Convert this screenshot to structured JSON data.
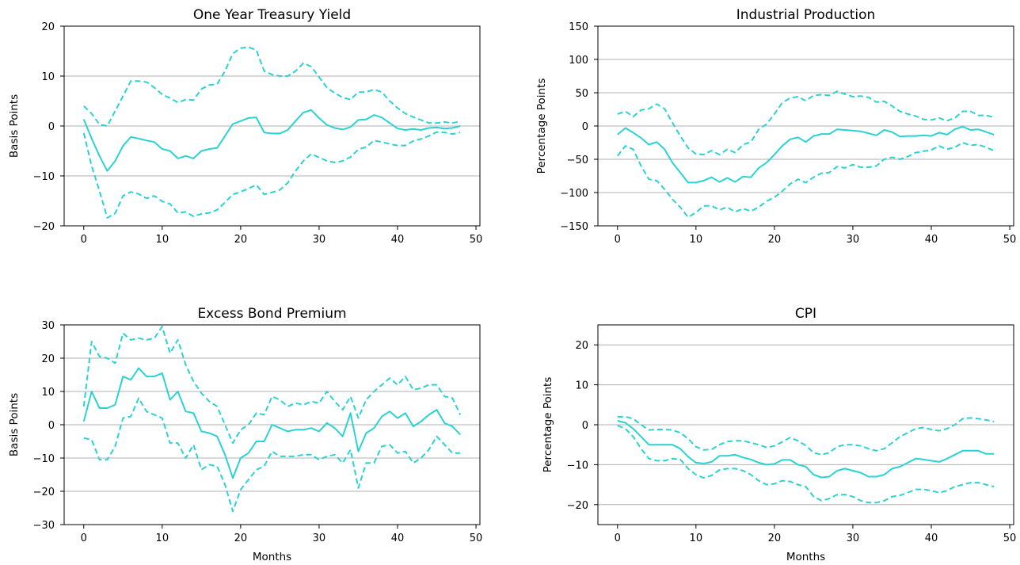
{
  "colors": {
    "line": "#2ad3d3",
    "grid": "#b0b0b0",
    "axis": "#000000"
  },
  "chart_data": [
    {
      "type": "line",
      "title": "One Year Treasury Yield",
      "xlabel": "",
      "ylabel": "Basis Points",
      "xlim": [
        -2.5,
        50.5
      ],
      "ylim": [
        -20,
        20
      ],
      "xticks": [
        0,
        10,
        20,
        30,
        40,
        50
      ],
      "yticks": [
        -20,
        -10,
        0,
        10,
        20
      ],
      "ytick_labels": [
        "−20",
        "−10",
        "0",
        "10",
        "20"
      ],
      "grid": "y",
      "x": [
        0,
        1,
        2,
        3,
        4,
        5,
        6,
        7,
        8,
        9,
        10,
        11,
        12,
        13,
        14,
        15,
        16,
        17,
        18,
        19,
        20,
        21,
        22,
        23,
        24,
        25,
        26,
        27,
        28,
        29,
        30,
        31,
        32,
        33,
        34,
        35,
        36,
        37,
        38,
        39,
        40,
        41,
        42,
        43,
        44,
        45,
        46,
        47,
        48
      ],
      "series": [
        {
          "style": "solid",
          "values": [
            1.3,
            -2.5,
            -6,
            -9,
            -7,
            -4,
            -2.2,
            -2.5,
            -2.9,
            -3.2,
            -4.6,
            -5,
            -6.5,
            -6,
            -6.5,
            -5,
            -4.6,
            -4.4,
            -2,
            0.4,
            1,
            1.6,
            1.7,
            -1.3,
            -1.5,
            -1.5,
            -0.8,
            1,
            2.7,
            3.2,
            1.6,
            0.2,
            -0.4,
            -0.7,
            -0.2,
            1.2,
            1.3,
            2.2,
            1.7,
            0.6,
            -0.5,
            -0.8,
            -0.6,
            -0.8,
            -0.4,
            -0.3,
            -0.5,
            -0.4,
            0
          ]
        },
        {
          "style": "dashed",
          "values": [
            4,
            2.5,
            0.3,
            0,
            3,
            6,
            9,
            9,
            8.8,
            7.7,
            6.3,
            5.6,
            4.7,
            5.3,
            5.2,
            7.4,
            8.2,
            8.4,
            11,
            14.5,
            15.6,
            15.8,
            15.2,
            11,
            10.3,
            10,
            10,
            11,
            12.6,
            11.9,
            9.8,
            7.7,
            6.6,
            5.7,
            5.3,
            6.8,
            6.8,
            7.3,
            6.8,
            5,
            3.6,
            2.5,
            1.8,
            1.2,
            0.6,
            0.6,
            0.8,
            0.6,
            0.9
          ]
        },
        {
          "style": "dashed",
          "values": [
            -1.4,
            -8,
            -13,
            -18.4,
            -17.5,
            -14,
            -13.2,
            -13.6,
            -14.5,
            -14,
            -15.1,
            -15.6,
            -17.4,
            -17.2,
            -18.1,
            -17.6,
            -17.4,
            -16.8,
            -15.3,
            -13.7,
            -13.2,
            -12.5,
            -11.8,
            -13.7,
            -13.3,
            -12.8,
            -11.4,
            -9,
            -7,
            -5.6,
            -6.3,
            -7,
            -7.3,
            -7,
            -6.2,
            -4.7,
            -4.2,
            -2.9,
            -3.2,
            -3.6,
            -3.9,
            -3.9,
            -3,
            -2.6,
            -2,
            -1.2,
            -1.3,
            -1.6,
            -1.3
          ]
        }
      ]
    },
    {
      "type": "line",
      "title": "Industrial Production",
      "xlabel": "",
      "ylabel": "Percentage Points",
      "xlim": [
        -2.5,
        50.5
      ],
      "ylim": [
        -150,
        150
      ],
      "xticks": [
        0,
        10,
        20,
        30,
        40,
        50
      ],
      "yticks": [
        -150,
        -100,
        -50,
        0,
        50,
        100,
        150
      ],
      "ytick_labels": [
        "−150",
        "−100",
        "−50",
        "0",
        "50",
        "100",
        "150"
      ],
      "grid": "y",
      "x": [
        0,
        1,
        2,
        3,
        4,
        5,
        6,
        7,
        8,
        9,
        10,
        11,
        12,
        13,
        14,
        15,
        16,
        17,
        18,
        19,
        20,
        21,
        22,
        23,
        24,
        25,
        26,
        27,
        28,
        29,
        30,
        31,
        32,
        33,
        34,
        35,
        36,
        37,
        38,
        39,
        40,
        41,
        42,
        43,
        44,
        45,
        46,
        47,
        48
      ],
      "series": [
        {
          "style": "solid",
          "values": [
            -13,
            -3,
            -10,
            -18,
            -28,
            -24,
            -35,
            -55,
            -70,
            -85,
            -85,
            -82,
            -77,
            -84,
            -78,
            -84,
            -76,
            -77,
            -63,
            -55,
            -43,
            -30,
            -20,
            -17,
            -24,
            -15,
            -12,
            -12,
            -5,
            -6,
            -7,
            -8,
            -11,
            -14,
            -6,
            -9,
            -16,
            -15,
            -15,
            -14,
            -15,
            -10,
            -13,
            -5,
            -1,
            -6,
            -5,
            -9,
            -13
          ]
        },
        {
          "style": "dashed",
          "values": [
            18,
            22,
            14,
            24,
            26,
            33,
            26,
            5,
            -15,
            -33,
            -42,
            -43,
            -37,
            -43,
            -35,
            -40,
            -28,
            -24,
            -5,
            3,
            18,
            35,
            42,
            44,
            38,
            46,
            47,
            46,
            52,
            48,
            44,
            45,
            43,
            36,
            37,
            30,
            22,
            18,
            15,
            10,
            9,
            12,
            8,
            12,
            22,
            22,
            16,
            16,
            13
          ]
        },
        {
          "style": "dashed",
          "values": [
            -45,
            -30,
            -35,
            -60,
            -80,
            -82,
            -95,
            -110,
            -122,
            -137,
            -130,
            -120,
            -120,
            -126,
            -122,
            -129,
            -124,
            -128,
            -122,
            -113,
            -107,
            -98,
            -87,
            -80,
            -85,
            -77,
            -71,
            -70,
            -61,
            -63,
            -58,
            -62,
            -62,
            -60,
            -50,
            -47,
            -50,
            -46,
            -40,
            -38,
            -36,
            -30,
            -35,
            -32,
            -25,
            -29,
            -28,
            -32,
            -37
          ]
        }
      ]
    },
    {
      "type": "line",
      "title": "Excess Bond Premium",
      "xlabel": "Months",
      "ylabel": "Basis Points",
      "xlim": [
        -2.5,
        50.5
      ],
      "ylim": [
        -30,
        30
      ],
      "xticks": [
        0,
        10,
        20,
        30,
        40,
        50
      ],
      "yticks": [
        -30,
        -20,
        -10,
        0,
        10,
        20,
        30
      ],
      "ytick_labels": [
        "−30",
        "−20",
        "−10",
        "0",
        "10",
        "20",
        "30"
      ],
      "grid": "y",
      "x": [
        0,
        1,
        2,
        3,
        4,
        5,
        6,
        7,
        8,
        9,
        10,
        11,
        12,
        13,
        14,
        15,
        16,
        17,
        18,
        19,
        20,
        21,
        22,
        23,
        24,
        25,
        26,
        27,
        28,
        29,
        30,
        31,
        32,
        33,
        34,
        35,
        36,
        37,
        38,
        39,
        40,
        41,
        42,
        43,
        44,
        45,
        46,
        47,
        48
      ],
      "series": [
        {
          "style": "solid",
          "values": [
            1,
            10,
            5,
            5,
            6,
            14.5,
            13.5,
            17,
            14.5,
            14.5,
            15.5,
            7.5,
            10,
            4,
            3.5,
            -2,
            -2.5,
            -3.5,
            -9,
            -16,
            -10,
            -8.5,
            -5,
            -5,
            0,
            -1,
            -2,
            -1.5,
            -1.5,
            -1,
            -2,
            0.5,
            -1,
            -3.5,
            3.5,
            -8,
            -2.5,
            -1,
            2.5,
            4,
            2,
            3.5,
            -0.5,
            1,
            3,
            4.5,
            0.5,
            -0.5,
            -3
          ]
        },
        {
          "style": "dashed",
          "values": [
            5.5,
            25,
            20.5,
            20,
            18.5,
            27.5,
            25.5,
            26,
            25.5,
            26,
            29.5,
            21.5,
            25.5,
            18,
            13,
            9.5,
            7,
            5.5,
            0,
            -5.5,
            -1.5,
            0,
            3.5,
            3,
            8.5,
            7.5,
            5.5,
            6.5,
            6,
            7,
            6.5,
            10,
            7,
            4.5,
            8.5,
            2,
            7.5,
            10,
            12,
            14,
            12,
            14.5,
            10.5,
            11,
            12,
            12,
            8.5,
            8,
            3
          ]
        },
        {
          "style": "dashed",
          "values": [
            -4,
            -4.5,
            -10.5,
            -10.5,
            -6.5,
            2,
            2.5,
            8,
            4,
            3,
            2,
            -5.5,
            -5.5,
            -10,
            -6,
            -13.5,
            -12,
            -12.5,
            -18,
            -26,
            -19.5,
            -16.5,
            -13.5,
            -12.5,
            -8,
            -9.5,
            -9.5,
            -9.5,
            -9,
            -9,
            -10.5,
            -9.5,
            -9,
            -11.5,
            -7.5,
            -19,
            -11.5,
            -11.5,
            -6.5,
            -6,
            -8.5,
            -8,
            -11.5,
            -10,
            -7.5,
            -3.5,
            -6,
            -8.5,
            -8.5
          ]
        }
      ]
    },
    {
      "type": "line",
      "title": "CPI",
      "xlabel": "Months",
      "ylabel": "Percentage Points",
      "xlim": [
        -2.5,
        50.5
      ],
      "ylim": [
        -25,
        25
      ],
      "xticks": [
        0,
        10,
        20,
        30,
        40,
        50
      ],
      "yticks": [
        -20,
        -10,
        0,
        10,
        20
      ],
      "ytick_labels": [
        "−20",
        "−10",
        "0",
        "10",
        "20"
      ],
      "grid": "y",
      "x": [
        0,
        1,
        2,
        3,
        4,
        5,
        6,
        7,
        8,
        9,
        10,
        11,
        12,
        13,
        14,
        15,
        16,
        17,
        18,
        19,
        20,
        21,
        22,
        23,
        24,
        25,
        26,
        27,
        28,
        29,
        30,
        31,
        32,
        33,
        34,
        35,
        36,
        37,
        38,
        39,
        40,
        41,
        42,
        43,
        44,
        45,
        46,
        47,
        48
      ],
      "series": [
        {
          "style": "solid",
          "values": [
            1,
            0.5,
            -1,
            -3,
            -5,
            -5,
            -5,
            -5,
            -6,
            -8,
            -9.5,
            -9.7,
            -9.3,
            -7.8,
            -7.8,
            -7.5,
            -8.2,
            -8.7,
            -9.5,
            -10,
            -9.8,
            -8.8,
            -8.8,
            -10,
            -10.5,
            -12.5,
            -13.2,
            -13,
            -11.5,
            -11,
            -11.5,
            -12,
            -13,
            -13,
            -12.5,
            -11,
            -10.5,
            -9.5,
            -8.5,
            -8.7,
            -9,
            -9.3,
            -8.5,
            -7.5,
            -6.5,
            -6.5,
            -6.5,
            -7.3,
            -7.3
          ]
        },
        {
          "style": "dashed",
          "values": [
            2,
            2,
            1.5,
            0,
            -1.3,
            -1.2,
            -1.2,
            -1.3,
            -2,
            -3.5,
            -5.5,
            -6.3,
            -6.2,
            -5,
            -4.2,
            -4,
            -4,
            -4.5,
            -5,
            -5.7,
            -5.3,
            -4.3,
            -3.2,
            -4,
            -5.2,
            -7,
            -7.5,
            -7,
            -5.5,
            -5,
            -5,
            -5.3,
            -6,
            -6.5,
            -6,
            -4.5,
            -3,
            -2,
            -1,
            -0.7,
            -1.2,
            -1.5,
            -1,
            0,
            1.5,
            1.7,
            1.5,
            1.2,
            0.8
          ]
        },
        {
          "style": "dashed",
          "values": [
            -0.2,
            -1,
            -3,
            -6,
            -8.5,
            -9,
            -9,
            -8.5,
            -8.7,
            -11,
            -12.5,
            -13.3,
            -12.7,
            -11.3,
            -11,
            -11,
            -11.5,
            -12.5,
            -14,
            -15,
            -14.8,
            -14,
            -14.2,
            -15,
            -15.5,
            -18,
            -19,
            -18.5,
            -17.5,
            -17.5,
            -18,
            -19,
            -19.5,
            -19.5,
            -19,
            -18,
            -17.7,
            -17,
            -16.2,
            -16.2,
            -16.5,
            -17,
            -16.5,
            -15.5,
            -15,
            -14.5,
            -14.5,
            -15,
            -15.5
          ]
        }
      ]
    }
  ]
}
